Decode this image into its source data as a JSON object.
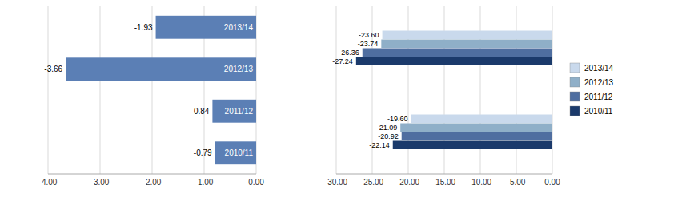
{
  "chart_data": [
    {
      "type": "bar",
      "orientation": "horizontal",
      "categories": [
        "2013/14",
        "2012/13",
        "2011/12",
        "2010/11"
      ],
      "values": [
        -1.93,
        -3.66,
        -0.84,
        -0.79
      ],
      "color": "#5B7FB5",
      "xlim": [
        -4.0,
        0.0
      ],
      "xticks": [
        {
          "value": -4.0,
          "label": "-4.00"
        },
        {
          "value": -3.0,
          "label": "-3.00"
        },
        {
          "value": -2.0,
          "label": "-2.00"
        },
        {
          "value": -1.0,
          "label": "-1.00"
        },
        {
          "value": 0.0,
          "label": "0.00"
        }
      ],
      "grid": true,
      "data_labels": true
    },
    {
      "type": "bar",
      "orientation": "horizontal",
      "categories": [
        null,
        null
      ],
      "series": [
        {
          "name": "2013/14",
          "color": "#C9D9EC",
          "values": [
            -23.6,
            -19.6
          ],
          "value_labels": [
            "-23.60",
            "-19.60"
          ]
        },
        {
          "name": "2012/13",
          "color": "#8FAFC8",
          "values": [
            -23.74,
            -21.09
          ],
          "value_labels": [
            "-23.74",
            "-21.09"
          ]
        },
        {
          "name": "2011/12",
          "color": "#4F6EA0",
          "values": [
            -26.36,
            -20.92
          ],
          "value_labels": [
            "-26.36",
            "-20.92"
          ]
        },
        {
          "name": "2010/11",
          "color": "#1B3A6B",
          "values": [
            -27.24,
            -22.14
          ],
          "value_labels": [
            "-27.24",
            "-22.14"
          ]
        }
      ],
      "xlim": [
        -30.0,
        0.0
      ],
      "xticks": [
        {
          "value": -30.0,
          "label": "-30.00"
        },
        {
          "value": -25.0,
          "label": "-25.00"
        },
        {
          "value": -20.0,
          "label": "-20.00"
        },
        {
          "value": -15.0,
          "label": "-15.00"
        },
        {
          "value": -10.0,
          "label": "-10.00"
        },
        {
          "value": -5.0,
          "label": "-5.00"
        },
        {
          "value": 0.0,
          "label": "0.00"
        }
      ],
      "grid": true,
      "data_labels": true,
      "legend": "right"
    }
  ]
}
